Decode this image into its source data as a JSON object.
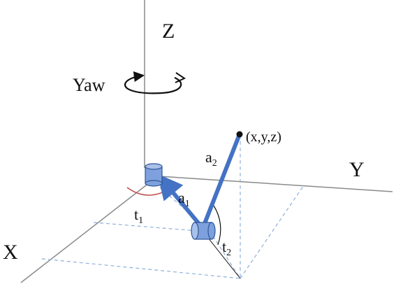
{
  "axes": {
    "x": "X",
    "y": "Y",
    "z": "Z"
  },
  "yaw": {
    "label": "Yaw"
  },
  "end_effector": {
    "label": "(x,y,z)"
  },
  "links": [
    {
      "base": "a",
      "sub": "1"
    },
    {
      "base": "a",
      "sub": "2"
    }
  ],
  "angles": [
    {
      "base": "t",
      "sub": "1"
    },
    {
      "base": "t",
      "sub": "2"
    }
  ],
  "colors": {
    "arm": "#4472c4",
    "joint_fill": "#7ea1de",
    "joint_stroke": "#2f5597",
    "dashed": "#8fb0dc",
    "axis": "#8a8a8a",
    "t1_arc": "#c0504d",
    "t2_arc": "#111111",
    "text": "#111111"
  }
}
